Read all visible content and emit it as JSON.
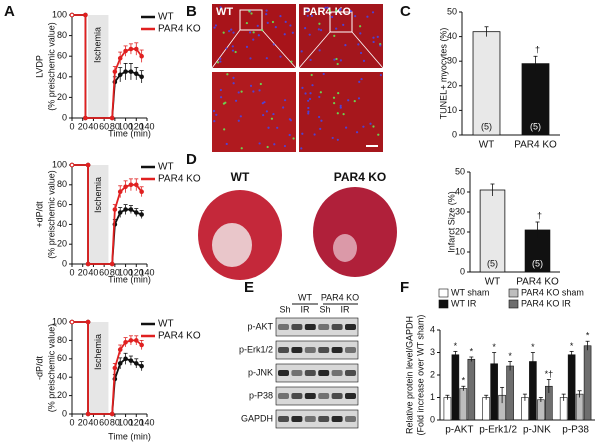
{
  "chart_data": [
    {
      "type": "line",
      "ylabel": [
        "LVDP",
        "(% preischemic value)"
      ],
      "xlabel": "Time (min)",
      "x": [
        0,
        25,
        25,
        75,
        80,
        90,
        100,
        110,
        120,
        130
      ],
      "xlim": [
        0,
        140
      ],
      "xticks": [
        0,
        20,
        40,
        60,
        80,
        100,
        120,
        140
      ],
      "ylim": [
        0,
        100
      ],
      "yticks": [
        0,
        20,
        40,
        60,
        80,
        100
      ],
      "shaded": {
        "label": "Ischemia",
        "range": [
          30,
          68
        ]
      },
      "series": [
        {
          "name": "WT",
          "color": "#111111",
          "values": [
            100,
            100,
            0,
            0,
            35,
            42,
            45,
            45,
            43,
            40
          ],
          "errors": [
            null,
            null,
            null,
            null,
            5,
            7,
            8,
            8,
            6,
            6
          ]
        },
        {
          "name": "PAR4 KO",
          "color": "#e02020",
          "values": [
            100,
            100,
            0,
            0,
            45,
            58,
            65,
            67,
            67,
            60
          ],
          "errors": [
            null,
            null,
            null,
            null,
            5,
            6,
            5,
            5,
            6,
            6
          ]
        }
      ]
    },
    {
      "type": "line",
      "ylabel": [
        "+dP/dt",
        "(% preischemic value)"
      ],
      "xlabel": "Time (min)",
      "x": [
        0,
        30,
        30,
        75,
        80,
        90,
        100,
        110,
        120,
        130
      ],
      "xlim": [
        0,
        140
      ],
      "xticks": [
        0,
        20,
        40,
        60,
        80,
        100,
        120,
        140
      ],
      "ylim": [
        0,
        100
      ],
      "yticks": [
        0,
        20,
        40,
        60,
        80,
        100
      ],
      "shaded": {
        "label": "Ischemia",
        "range": [
          32,
          68
        ]
      },
      "series": [
        {
          "name": "WT",
          "color": "#111111",
          "values": [
            100,
            100,
            0,
            0,
            40,
            52,
            55,
            55,
            52,
            50
          ],
          "errors": [
            null,
            null,
            null,
            null,
            5,
            5,
            5,
            4,
            4,
            4
          ]
        },
        {
          "name": "PAR4 KO",
          "color": "#e02020",
          "values": [
            100,
            100,
            0,
            0,
            55,
            73,
            78,
            80,
            80,
            73
          ],
          "errors": [
            null,
            null,
            null,
            null,
            5,
            6,
            6,
            6,
            6,
            5
          ]
        }
      ]
    },
    {
      "type": "line",
      "ylabel": [
        "-dP/dt",
        "(% preischemic value)"
      ],
      "xlabel": "Time (min)",
      "x": [
        0,
        30,
        30,
        75,
        80,
        90,
        100,
        110,
        120,
        130
      ],
      "xlim": [
        0,
        140
      ],
      "xticks": [
        0,
        20,
        40,
        60,
        80,
        100,
        120,
        140
      ],
      "ylim": [
        0,
        100
      ],
      "yticks": [
        0,
        20,
        40,
        60,
        80,
        100
      ],
      "shaded": {
        "label": "Ischemia",
        "range": [
          32,
          68
        ]
      },
      "series": [
        {
          "name": "WT",
          "color": "#111111",
          "values": [
            100,
            100,
            0,
            0,
            38,
            55,
            60,
            58,
            55,
            52
          ],
          "errors": [
            null,
            null,
            null,
            null,
            5,
            6,
            6,
            5,
            5,
            5
          ]
        },
        {
          "name": "PAR4 KO",
          "color": "#e02020",
          "values": [
            100,
            100,
            0,
            0,
            50,
            70,
            78,
            80,
            80,
            75
          ],
          "errors": [
            null,
            null,
            null,
            null,
            5,
            5,
            5,
            5,
            5,
            5
          ]
        }
      ]
    },
    {
      "type": "bar",
      "ylabel": [
        "TUNEL+ myocytes (%)"
      ],
      "categories": [
        "WT",
        "PAR4 KO"
      ],
      "values": [
        42,
        29
      ],
      "errors": [
        2,
        3
      ],
      "colors": [
        "#e8e8e8",
        "#111111"
      ],
      "n_labels": [
        "(5)",
        "(5)"
      ],
      "significance": [
        null,
        "†"
      ],
      "ylim": [
        0,
        50
      ],
      "yticks": [
        0,
        10,
        20,
        30,
        40,
        50
      ]
    },
    {
      "type": "bar",
      "ylabel": [
        "Infarct Size (%)"
      ],
      "categories": [
        "WT",
        "PAR4 KO"
      ],
      "values": [
        41,
        21
      ],
      "errors": [
        3,
        4
      ],
      "colors": [
        "#e8e8e8",
        "#111111"
      ],
      "n_labels": [
        "(5)",
        "(5)"
      ],
      "significance": [
        null,
        "†"
      ],
      "ylim": [
        0,
        50
      ],
      "yticks": [
        0,
        10,
        20,
        30,
        40,
        50
      ]
    },
    {
      "type": "grouped_bar",
      "ylabel": [
        "Relative protein level/GAPDH",
        "(Fold increase over WT sham)"
      ],
      "categories": [
        "p-AKT",
        "p-Erk1/2",
        "p-JNK",
        "p-P38"
      ],
      "ylim": [
        0,
        4
      ],
      "yticks": [
        0,
        1,
        2,
        3,
        4
      ],
      "series": [
        {
          "name": "WT sham",
          "color": "#ffffff",
          "values": [
            1,
            1,
            1,
            1
          ],
          "errors": [
            0.1,
            0.1,
            0.15,
            0.15
          ],
          "significance": [
            null,
            null,
            null,
            null
          ]
        },
        {
          "name": "WT IR",
          "color": "#111111",
          "values": [
            2.9,
            2.5,
            2.6,
            2.9
          ],
          "errors": [
            0.15,
            0.5,
            0.4,
            0.15
          ],
          "significance": [
            "*",
            "*",
            "*",
            "*"
          ]
        },
        {
          "name": "PAR4 KO sham",
          "color": "#bdbdbd",
          "values": [
            1.4,
            1.1,
            0.9,
            1.15
          ],
          "errors": [
            0.1,
            0.35,
            0.1,
            0.15
          ],
          "significance": [
            "*",
            null,
            null,
            null
          ]
        },
        {
          "name": "PAR4 KO IR",
          "color": "#6e6e6e",
          "values": [
            2.7,
            2.4,
            1.5,
            3.3
          ],
          "errors": [
            0.1,
            0.2,
            0.3,
            0.2
          ],
          "significance": [
            "*",
            "*",
            "*†",
            "*"
          ]
        }
      ]
    }
  ],
  "figure": {
    "panel_letters": [
      "A",
      "B",
      "C",
      "D",
      "E",
      "F"
    ],
    "micrographs": {
      "labels": [
        "WT",
        "PAR4 KO"
      ]
    },
    "hearts": {
      "labels": [
        "WT",
        "PAR4 KO"
      ]
    },
    "blot": {
      "groups": [
        "WT",
        "PAR4 KO"
      ],
      "lanes": [
        "Sh",
        "IR",
        "Sh",
        "IR"
      ],
      "rows": [
        "p-AKT",
        "p-Erk1/2",
        "p-JNK",
        "p-P38",
        "GAPDH"
      ]
    }
  }
}
